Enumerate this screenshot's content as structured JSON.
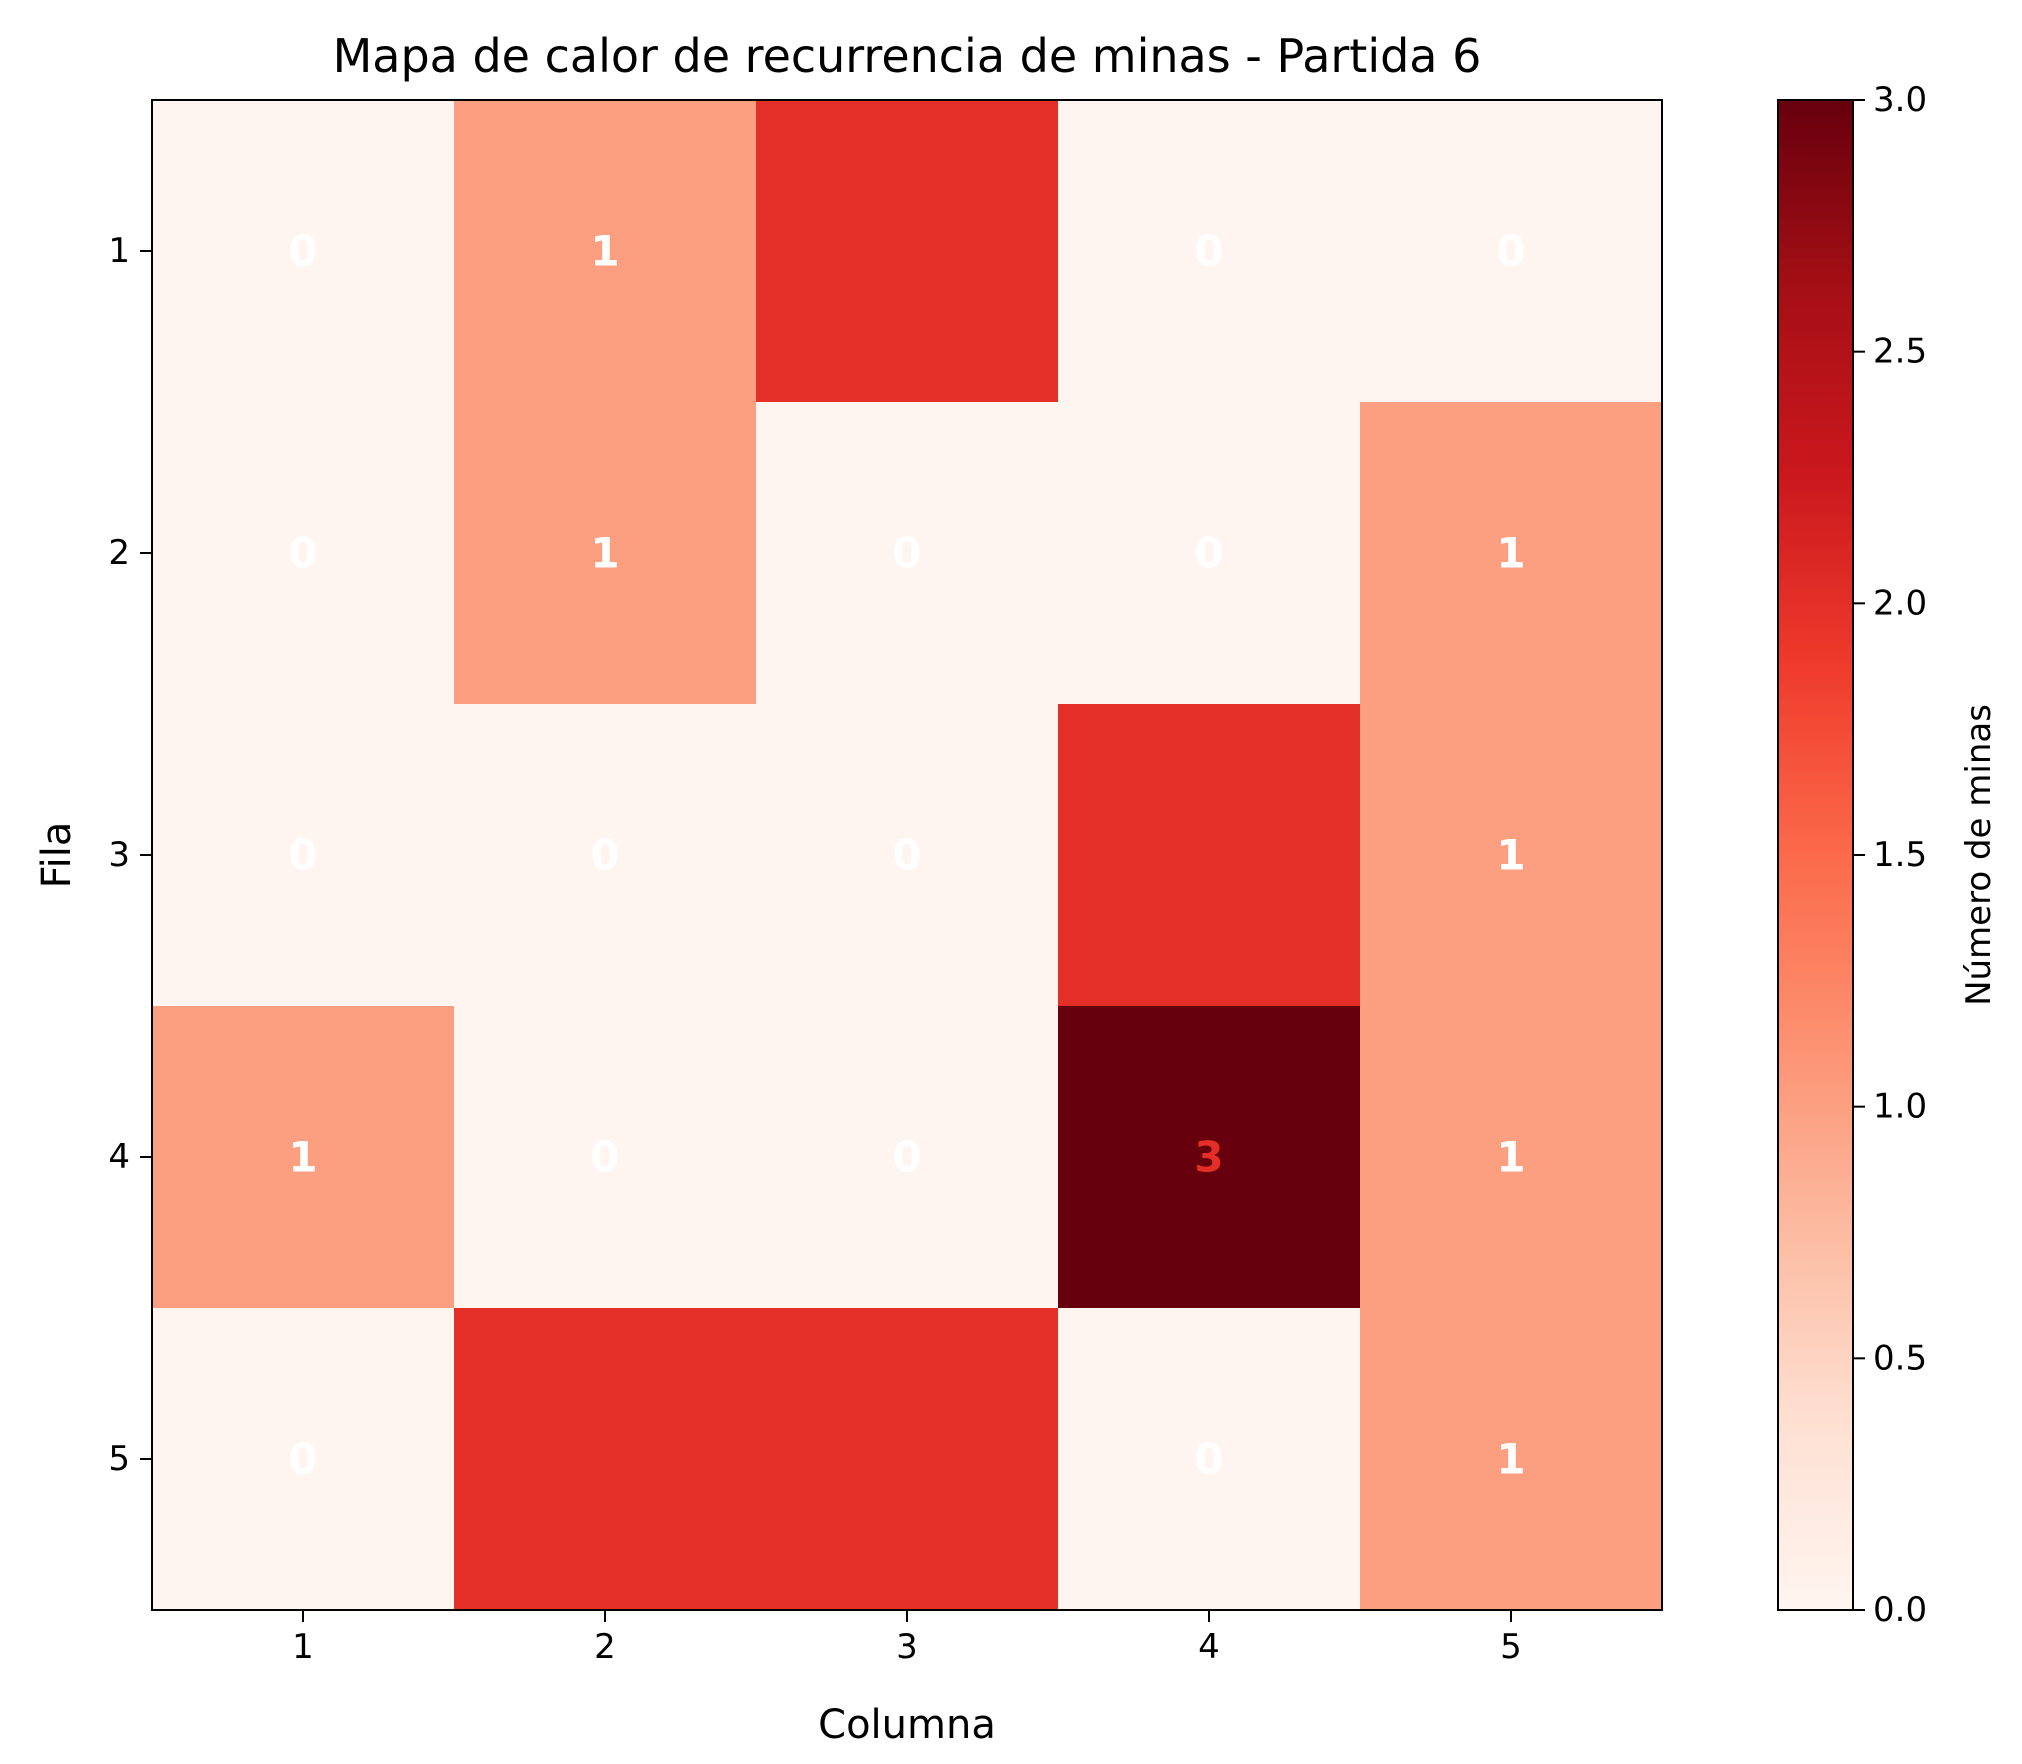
{
  "chart_data": {
    "type": "heatmap",
    "title": "Mapa de calor de recurrencia de minas - Partida 6",
    "xlabel": "Columna",
    "ylabel": "Fila",
    "colorbar_label": "Número de minas",
    "colormap": "Reds",
    "x_categories": [
      "1",
      "2",
      "3",
      "4",
      "5"
    ],
    "y_categories": [
      "1",
      "2",
      "3",
      "4",
      "5"
    ],
    "values": [
      [
        0,
        1,
        2,
        0,
        0
      ],
      [
        0,
        1,
        0,
        0,
        1
      ],
      [
        0,
        0,
        0,
        2,
        1
      ],
      [
        1,
        0,
        0,
        3,
        1
      ],
      [
        0,
        2,
        2,
        0,
        1
      ]
    ],
    "color_range": [
      0,
      3
    ],
    "colorbar_ticks": [
      "0.0",
      "0.5",
      "1.0",
      "1.5",
      "2.0",
      "2.5",
      "3.0"
    ],
    "cell_colors": {
      "0": "#fff5f0",
      "1": "#fc9f81",
      "2": "#e32f27",
      "3": "#67000d"
    },
    "label_colors": {
      "0": "#ffffff",
      "1": "#ffffff",
      "2": "#e32f27",
      "3": "#e32f27"
    },
    "legend": "colorbar-right",
    "grid": false
  }
}
